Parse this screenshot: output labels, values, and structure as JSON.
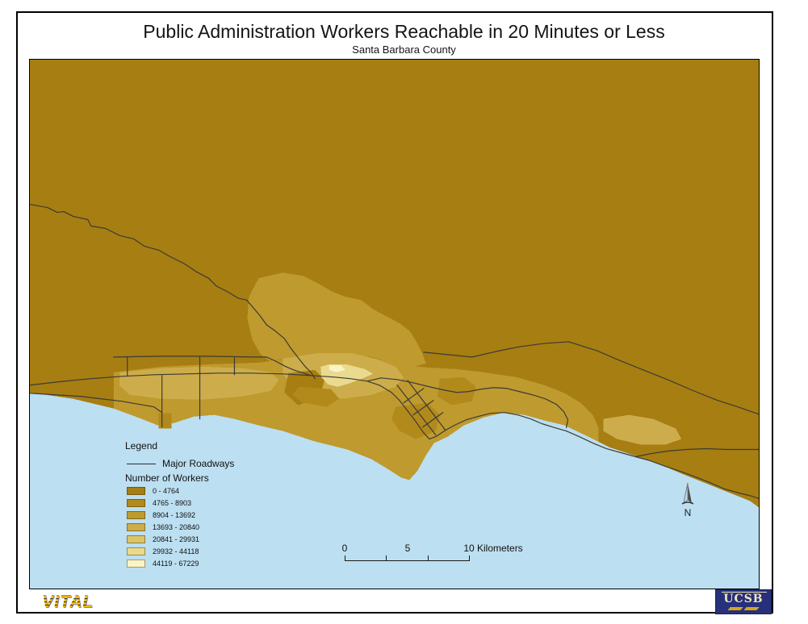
{
  "header": {
    "title": "Public Administration Workers Reachable in 20 Minutes or Less",
    "subtitle": "Santa Barbara County"
  },
  "legend": {
    "title": "Legend",
    "roadways": {
      "label": "Major Roadways"
    },
    "workers": {
      "title": "Number of Workers",
      "classes": [
        {
          "label": "0 - 4764",
          "color": "#a77e12"
        },
        {
          "label": "4765 - 8903",
          "color": "#b28a1c"
        },
        {
          "label": "8904 - 13692",
          "color": "#bf9a2e"
        },
        {
          "label": "13693 - 20840",
          "color": "#cdad4b"
        },
        {
          "label": "20841 - 29931",
          "color": "#dac369"
        },
        {
          "label": "29932 - 44118",
          "color": "#e9da8f"
        },
        {
          "label": "44119 - 67229",
          "color": "#f9f3c5"
        }
      ]
    }
  },
  "scalebar": {
    "tick_labels": [
      "0",
      "5",
      "10"
    ],
    "unit_label": "Kilometers"
  },
  "north_arrow": {
    "label": "N"
  },
  "map": {
    "ocean_color": "#bcdff1",
    "road_color": "#3b3b33"
  },
  "footer": {
    "vital_logo_text": "VITAL",
    "ucsb_logo_text": "UCSB"
  }
}
